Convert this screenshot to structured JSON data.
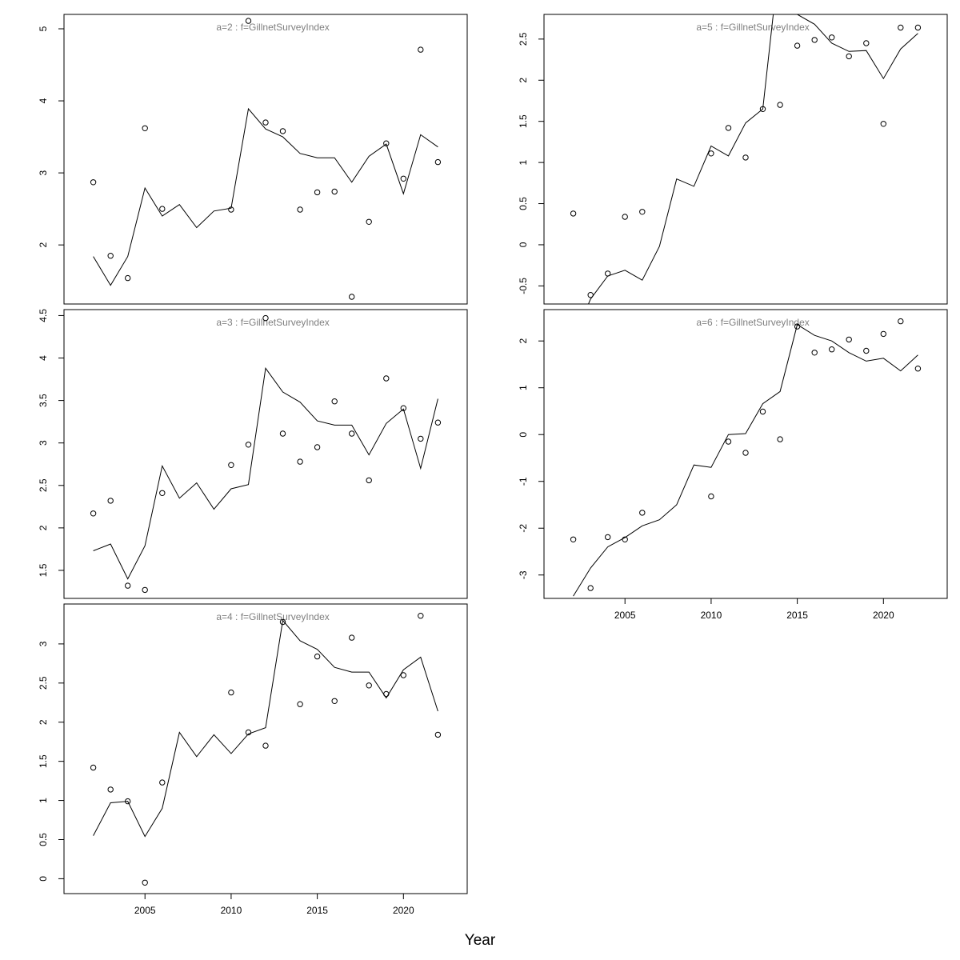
{
  "figure": {
    "xlabel": "Year"
  },
  "chart_data": [
    {
      "type": "line",
      "title": "a=2  :  f=GillnetSurveyIndex",
      "xlim": [
        2000.3,
        2023.7
      ],
      "ylim": [
        1.18,
        5.2
      ],
      "yticks": [
        2,
        3,
        4,
        5
      ],
      "xticks": [],
      "observed": {
        "x": [
          2002,
          2003,
          2004,
          2005,
          2006,
          2010,
          2011,
          2012,
          2013,
          2014,
          2015,
          2016,
          2017,
          2018,
          2019,
          2020,
          2021,
          2022
        ],
        "y": [
          2.87,
          1.85,
          1.54,
          3.62,
          2.5,
          2.49,
          5.11,
          3.7,
          3.58,
          2.49,
          2.73,
          2.74,
          1.28,
          2.32,
          3.41,
          2.92,
          4.71,
          3.15
        ]
      },
      "fitted": {
        "x": [
          2002,
          2003,
          2004,
          2005,
          2006,
          2007,
          2008,
          2009,
          2010,
          2011,
          2012,
          2013,
          2014,
          2015,
          2016,
          2017,
          2018,
          2019,
          2020,
          2021,
          2022
        ],
        "y": [
          1.84,
          1.44,
          1.84,
          2.79,
          2.4,
          2.56,
          2.24,
          2.47,
          2.51,
          3.89,
          3.61,
          3.5,
          3.27,
          3.21,
          3.21,
          2.87,
          3.23,
          3.4,
          2.71,
          3.53,
          3.36
        ]
      }
    },
    {
      "type": "line",
      "title": "a=3  :  f=GillnetSurveyIndex",
      "xlim": [
        2000.3,
        2023.7
      ],
      "ylim": [
        1.17,
        4.57
      ],
      "yticks": [
        1.5,
        2.0,
        2.5,
        3.0,
        3.5,
        4.0,
        4.5
      ],
      "xticks": [],
      "observed": {
        "x": [
          2002,
          2003,
          2004,
          2005,
          2006,
          2010,
          2011,
          2012,
          2013,
          2014,
          2015,
          2016,
          2017,
          2018,
          2019,
          2020,
          2021,
          2022
        ],
        "y": [
          2.17,
          2.32,
          1.32,
          1.27,
          2.41,
          2.74,
          2.98,
          4.47,
          3.11,
          2.78,
          2.95,
          3.49,
          3.11,
          2.56,
          3.76,
          3.41,
          3.05,
          3.24
        ]
      },
      "fitted": {
        "x": [
          2002,
          2003,
          2004,
          2005,
          2006,
          2007,
          2008,
          2009,
          2010,
          2011,
          2012,
          2013,
          2014,
          2015,
          2016,
          2017,
          2018,
          2019,
          2020,
          2021,
          2022
        ],
        "y": [
          1.73,
          1.81,
          1.4,
          1.79,
          2.73,
          2.35,
          2.53,
          2.22,
          2.46,
          2.51,
          3.88,
          3.6,
          3.48,
          3.26,
          3.21,
          3.21,
          2.86,
          3.23,
          3.4,
          2.7,
          3.52
        ]
      }
    },
    {
      "type": "line",
      "title": "a=4  :  f=GillnetSurveyIndex",
      "xlim": [
        2000.3,
        2023.7
      ],
      "ylim": [
        -0.19,
        3.51
      ],
      "yticks": [
        0.0,
        0.5,
        1.0,
        1.5,
        2.0,
        2.5,
        3.0
      ],
      "xticks": [
        2005,
        2010,
        2015,
        2020
      ],
      "observed": {
        "x": [
          2002,
          2003,
          2004,
          2005,
          2006,
          2010,
          2011,
          2012,
          2013,
          2014,
          2015,
          2016,
          2017,
          2018,
          2019,
          2020,
          2021,
          2022
        ],
        "y": [
          1.42,
          1.14,
          0.99,
          -0.05,
          1.23,
          2.38,
          1.87,
          1.7,
          3.28,
          2.23,
          2.84,
          2.27,
          3.08,
          2.47,
          2.36,
          2.6,
          3.36,
          1.84
        ]
      },
      "fitted": {
        "x": [
          2002,
          2003,
          2004,
          2005,
          2006,
          2007,
          2008,
          2009,
          2010,
          2011,
          2012,
          2013,
          2014,
          2015,
          2016,
          2017,
          2018,
          2019,
          2020,
          2021,
          2022
        ],
        "y": [
          0.55,
          0.97,
          0.99,
          0.54,
          0.9,
          1.87,
          1.56,
          1.84,
          1.6,
          1.85,
          1.93,
          3.3,
          3.04,
          2.93,
          2.7,
          2.64,
          2.64,
          2.31,
          2.67,
          2.83,
          2.14
        ]
      }
    },
    {
      "type": "line",
      "title": "a=5  :  f=GillnetSurveyIndex",
      "xlim": [
        2000.3,
        2023.7
      ],
      "ylim": [
        -0.72,
        2.8
      ],
      "yticks": [
        -0.5,
        0.0,
        0.5,
        1.0,
        1.5,
        2.0,
        2.5
      ],
      "xticks": [],
      "observed": {
        "x": [
          2002,
          2003,
          2004,
          2005,
          2006,
          2010,
          2011,
          2012,
          2013,
          2014,
          2015,
          2016,
          2017,
          2018,
          2019,
          2020,
          2021,
          2022
        ],
        "y": [
          0.38,
          -0.61,
          -0.35,
          0.34,
          0.4,
          1.11,
          1.42,
          1.06,
          1.65,
          1.7,
          2.42,
          2.49,
          2.52,
          2.29,
          2.45,
          1.47,
          2.64,
          2.64
        ]
      },
      "fitted": {
        "x": [
          2002,
          2003,
          2004,
          2005,
          2006,
          2007,
          2008,
          2009,
          2010,
          2011,
          2012,
          2013,
          2014,
          2015,
          2016,
          2017,
          2018,
          2019,
          2020,
          2021,
          2022
        ],
        "y": [
          -1.15,
          -0.66,
          -0.38,
          -0.31,
          -0.43,
          -0.02,
          0.8,
          0.71,
          1.2,
          1.08,
          1.48,
          1.65,
          3.55,
          2.8,
          2.68,
          2.45,
          2.35,
          2.36,
          2.02,
          2.38,
          2.57
        ]
      }
    },
    {
      "type": "line",
      "title": "a=6  :  f=GillnetSurveyIndex",
      "xlim": [
        2000.3,
        2023.7
      ],
      "ylim": [
        -3.5,
        2.67
      ],
      "yticks": [
        -3,
        -2,
        -1,
        0,
        1,
        2
      ],
      "xticks": [
        2005,
        2010,
        2015,
        2020
      ],
      "observed": {
        "x": [
          2002,
          2003,
          2004,
          2005,
          2006,
          2010,
          2011,
          2012,
          2013,
          2014,
          2015,
          2016,
          2017,
          2018,
          2019,
          2020,
          2021,
          2022
        ],
        "y": [
          -2.24,
          -3.28,
          -2.19,
          -2.24,
          -1.67,
          -1.32,
          -0.15,
          -0.39,
          0.49,
          -0.1,
          2.31,
          1.75,
          1.82,
          2.03,
          1.79,
          2.15,
          2.42,
          1.41
        ]
      },
      "fitted": {
        "x": [
          2002,
          2003,
          2004,
          2005,
          2006,
          2007,
          2008,
          2009,
          2010,
          2011,
          2012,
          2013,
          2014,
          2015,
          2016,
          2017,
          2018,
          2019,
          2020,
          2021,
          2022
        ],
        "y": [
          -3.45,
          -2.85,
          -2.4,
          -2.2,
          -1.95,
          -1.82,
          -1.5,
          -0.65,
          -0.7,
          0.0,
          0.02,
          0.66,
          0.92,
          2.35,
          2.12,
          2.0,
          1.75,
          1.57,
          1.63,
          1.36,
          1.7
        ]
      }
    }
  ]
}
